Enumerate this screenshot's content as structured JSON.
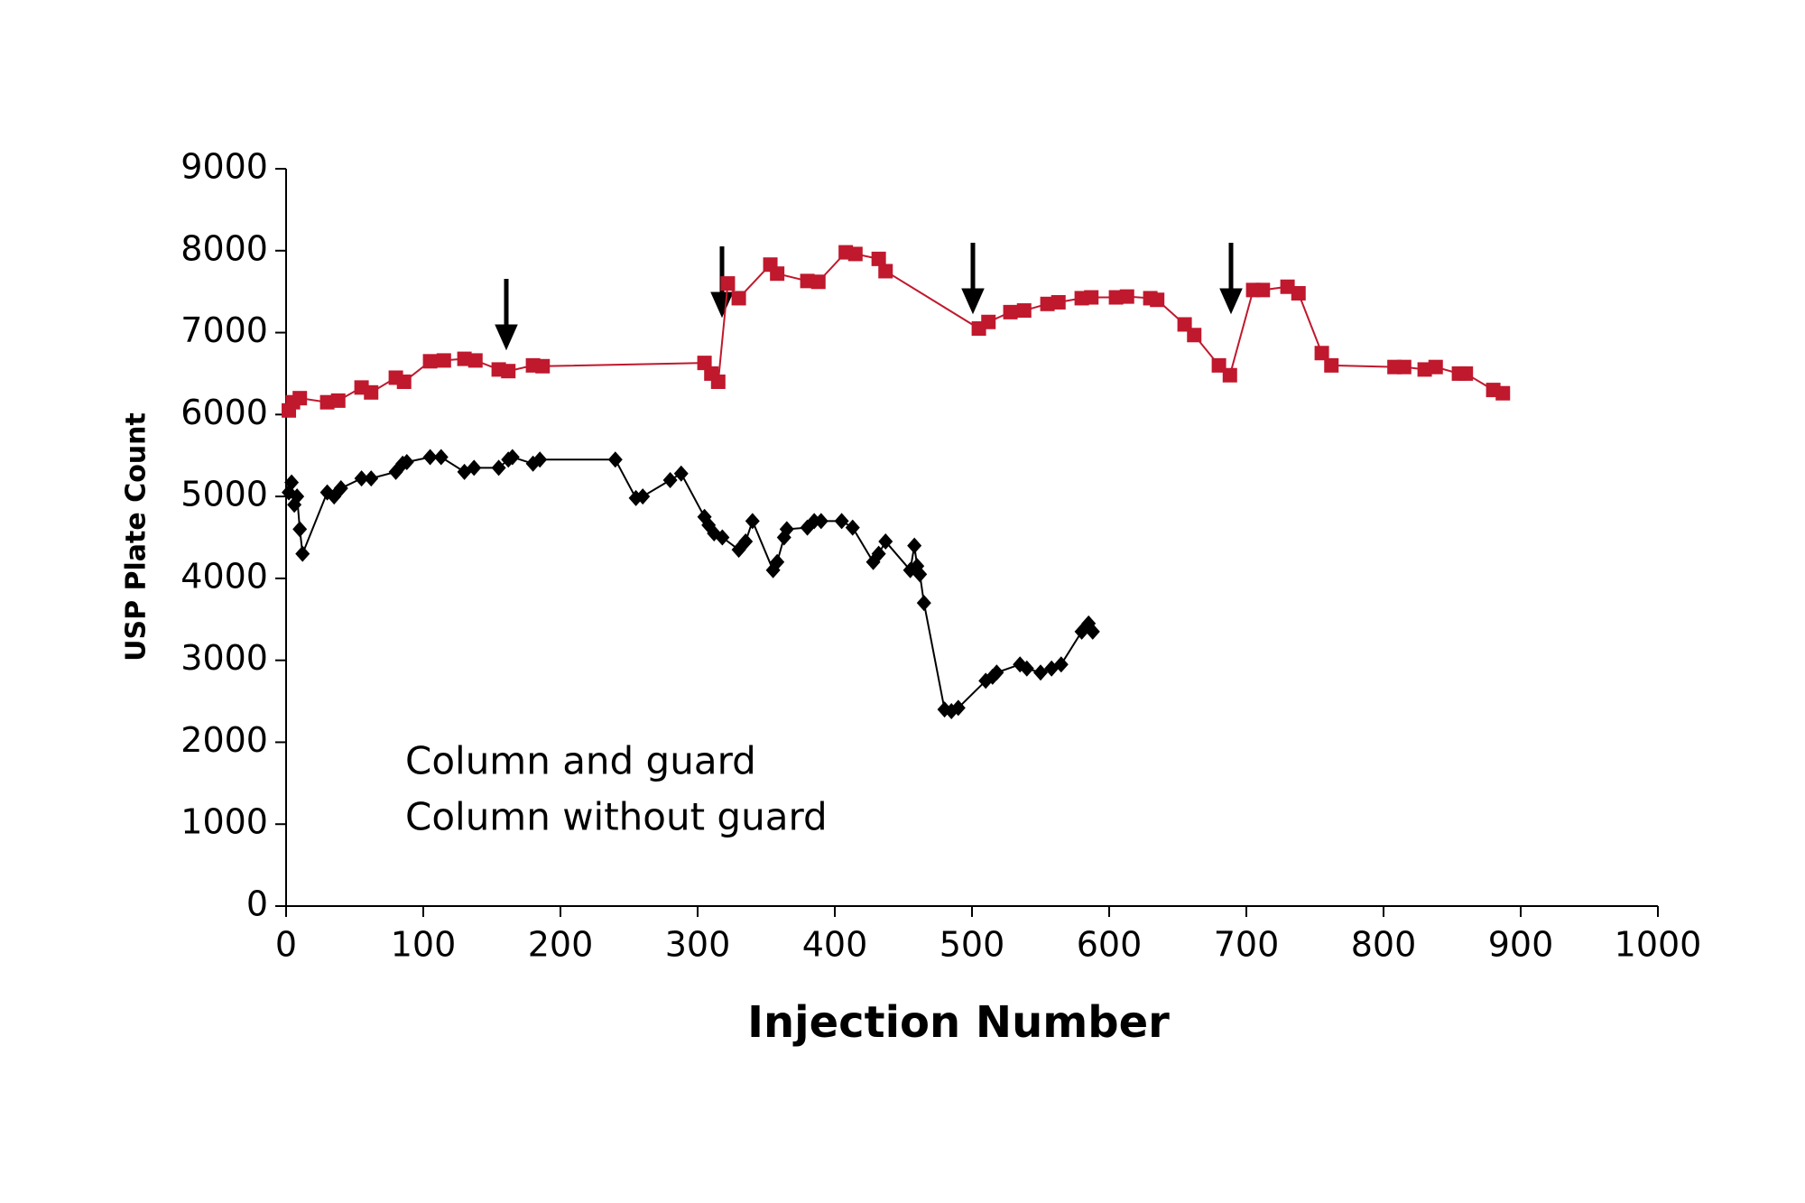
{
  "chart_data": {
    "type": "line",
    "xlabel": "Injection Number",
    "ylabel": "USP Plate Count",
    "xlim": [
      0,
      1000
    ],
    "xticks": [
      0,
      100,
      200,
      300,
      400,
      500,
      600,
      700,
      800,
      900,
      1000
    ],
    "ylim": [
      0,
      9000
    ],
    "yticks": [
      0,
      1000,
      2000,
      3000,
      4000,
      5000,
      6000,
      7000,
      8000,
      9000
    ],
    "series": [
      {
        "name": "Column and guard",
        "color": "#c0182d",
        "marker": "square",
        "x": [
          2,
          5,
          10,
          30,
          38,
          55,
          62,
          80,
          86,
          105,
          115,
          130,
          138,
          155,
          162,
          180,
          187,
          305,
          310,
          315,
          322,
          330,
          353,
          358,
          380,
          388,
          408,
          415,
          432,
          437,
          505,
          512,
          528,
          538,
          555,
          563,
          580,
          587,
          605,
          613,
          630,
          635,
          655,
          662,
          680,
          688,
          705,
          712,
          730,
          738,
          755,
          762,
          808,
          815,
          830,
          838,
          855,
          860,
          880,
          887
        ],
        "values": [
          6050,
          6150,
          6200,
          6150,
          6170,
          6330,
          6270,
          6450,
          6400,
          6650,
          6660,
          6680,
          6660,
          6550,
          6530,
          6600,
          6590,
          6630,
          6500,
          6400,
          7600,
          7420,
          7830,
          7720,
          7630,
          7620,
          7980,
          7960,
          7900,
          7750,
          7050,
          7130,
          7250,
          7270,
          7350,
          7370,
          7420,
          7430,
          7430,
          7440,
          7420,
          7400,
          7100,
          6970,
          6600,
          6480,
          7520,
          7520,
          7560,
          7480,
          6750,
          6600,
          6580,
          6580,
          6550,
          6580,
          6500,
          6500,
          6300,
          6260
        ]
      },
      {
        "name": "Column without guard",
        "color": "#000000",
        "marker": "diamond",
        "x": [
          2,
          4,
          6,
          8,
          10,
          12,
          30,
          35,
          40,
          55,
          62,
          80,
          85,
          88,
          105,
          113,
          130,
          137,
          155,
          162,
          165,
          180,
          185,
          240,
          255,
          260,
          280,
          288,
          305,
          308,
          312,
          318,
          330,
          335,
          340,
          355,
          358,
          363,
          365,
          380,
          385,
          390,
          405,
          413,
          428,
          432,
          437,
          455,
          458,
          460,
          462,
          465,
          480,
          485,
          490,
          510,
          515,
          518,
          535,
          540,
          550,
          558,
          565,
          580,
          585,
          588
        ],
        "values": [
          5050,
          5170,
          4900,
          5000,
          4600,
          4300,
          5050,
          5000,
          5100,
          5220,
          5220,
          5300,
          5400,
          5420,
          5480,
          5480,
          5300,
          5350,
          5350,
          5450,
          5480,
          5400,
          5450,
          5450,
          4980,
          5000,
          5200,
          5280,
          4750,
          4650,
          4550,
          4500,
          4350,
          4450,
          4700,
          4100,
          4200,
          4500,
          4600,
          4620,
          4700,
          4700,
          4700,
          4620,
          4200,
          4300,
          4450,
          4100,
          4400,
          4150,
          4050,
          3700,
          2400,
          2380,
          2420,
          2750,
          2800,
          2850,
          2950,
          2900,
          2850,
          2900,
          2950,
          3350,
          3450,
          3350
        ]
      }
    ]
  }
}
